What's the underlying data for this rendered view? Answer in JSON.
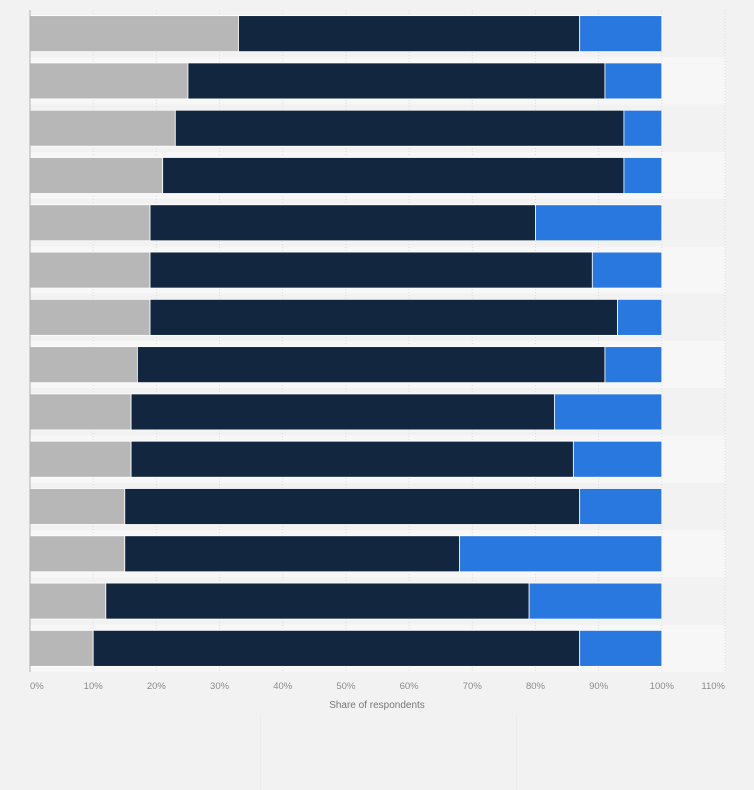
{
  "chart_data": {
    "type": "bar",
    "orientation": "horizontal",
    "stacked": true,
    "categories": [
      "",
      "",
      "",
      "",
      "",
      "",
      "",
      "",
      "",
      "",
      "",
      "",
      "",
      ""
    ],
    "series": [
      {
        "color": "#b7b7b7",
        "values": [
          33,
          25,
          23,
          21,
          19,
          19,
          19,
          17,
          16,
          16,
          15,
          15,
          12,
          10
        ]
      },
      {
        "color": "#12263f",
        "values": [
          54,
          66,
          71,
          73,
          61,
          70,
          74,
          74,
          67,
          70,
          72,
          53,
          67,
          77
        ]
      },
      {
        "color": "#2878e0",
        "values": [
          13,
          9,
          6,
          6,
          20,
          11,
          7,
          9,
          17,
          14,
          13,
          32,
          21,
          13
        ]
      }
    ],
    "xlim": [
      0,
      110
    ],
    "xticks": [
      "0%",
      "10%",
      "20%",
      "30%",
      "40%",
      "50%",
      "60%",
      "70%",
      "80%",
      "90%",
      "100%",
      "110%"
    ],
    "xlabel": "Share of respondents",
    "grid": true,
    "legend": "none"
  }
}
